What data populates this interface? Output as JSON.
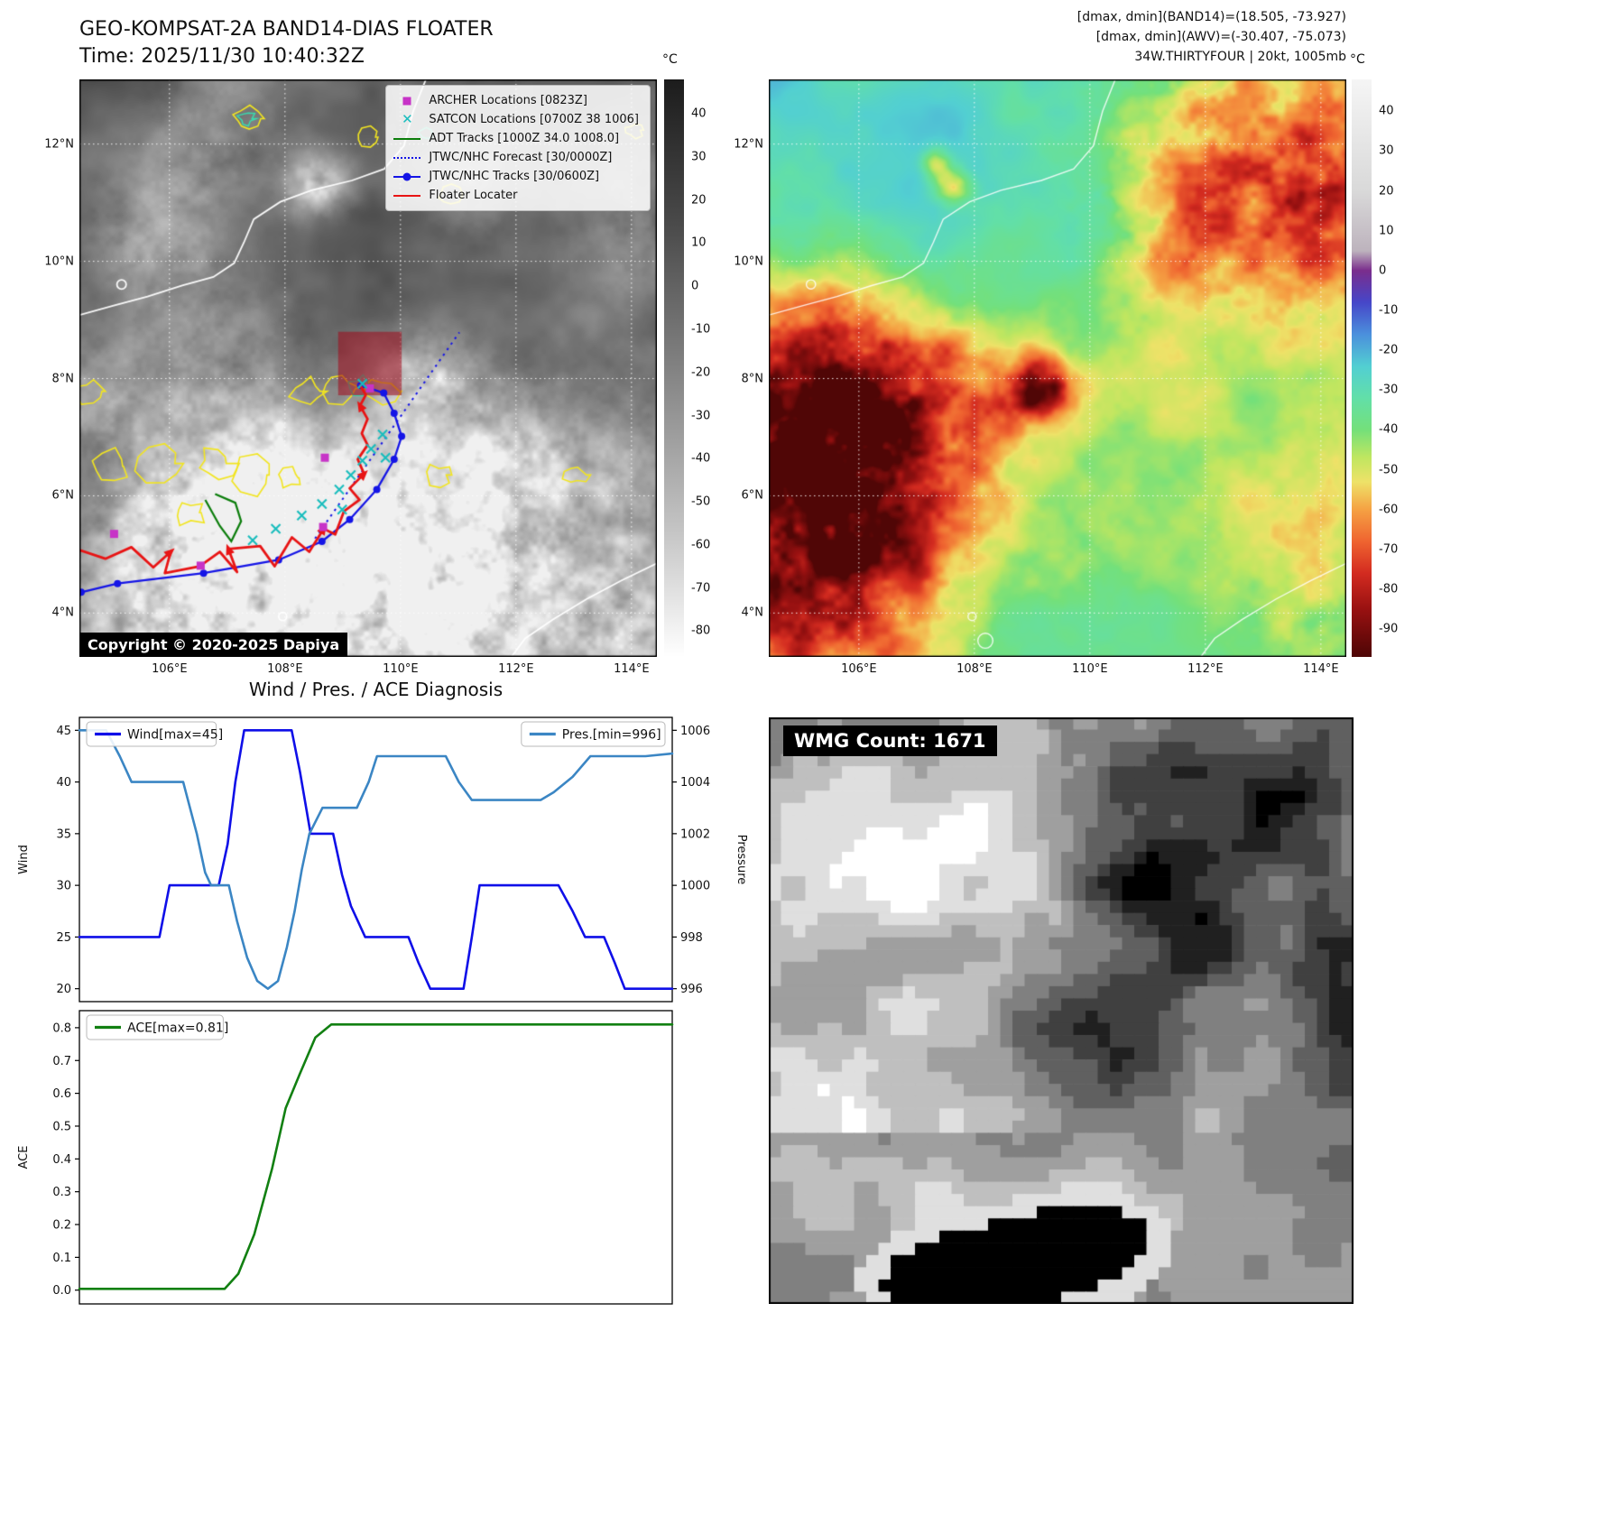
{
  "band14": {
    "title": "GEO-KOMPSAT-2A BAND14-DIAS FLOATER",
    "time": "Time: 2025/11/30 10:40:32Z",
    "copyright": "Copyright © 2020-2025 Dapiya",
    "colorbar": {
      "label": "°C",
      "ticks": [
        40,
        30,
        20,
        10,
        0,
        -10,
        -20,
        -30,
        -40,
        -50,
        -60,
        -70,
        -80
      ],
      "gradient": [
        [
          0,
          "#1c1c1c"
        ],
        [
          0.25,
          "#4a4a4a"
        ],
        [
          0.5,
          "#828282"
        ],
        [
          0.78,
          "#c4c4c4"
        ],
        [
          1,
          "#ffffff"
        ]
      ]
    },
    "axis": {
      "lat_labels": [
        "12°N",
        "10°N",
        "8°N",
        "6°N",
        "4°N"
      ],
      "lon_labels": [
        "106°E",
        "108°E",
        "110°E",
        "112°E",
        "114°E"
      ]
    },
    "legend": [
      {
        "label": "ARCHER Locations [0823Z]",
        "marker": "square",
        "color": "#c733c7"
      },
      {
        "label": "SATCON Locations [0700Z 38 1006]",
        "marker": "x",
        "color": "#18bdbd"
      },
      {
        "label": "ADT Tracks [1000Z 34.0 1008.0]",
        "marker": "line",
        "color": "#0a7d0a"
      },
      {
        "label": "JTWC/NHC Forecast [30/0000Z]",
        "marker": "dotted",
        "color": "#1414e6"
      },
      {
        "label": "JTWC/NHC Tracks [30/0600Z]",
        "marker": "line-dot",
        "color": "#1414e6"
      },
      {
        "label": "Floater Locater",
        "marker": "line",
        "color": "#e81414"
      }
    ],
    "overlays": {
      "coastlines": [
        [
          [
            0.6,
            0
          ],
          [
            0.578,
            0.055
          ],
          [
            0.562,
            0.115
          ],
          [
            0.528,
            0.155
          ],
          [
            0.472,
            0.175
          ],
          [
            0.402,
            0.192
          ],
          [
            0.348,
            0.212
          ],
          [
            0.302,
            0.242
          ],
          [
            0.285,
            0.282
          ],
          [
            0.268,
            0.318
          ],
          [
            0.232,
            0.342
          ],
          [
            0.178,
            0.357
          ],
          [
            0.118,
            0.376
          ],
          [
            0.058,
            0.392
          ],
          [
            0,
            0.408
          ]
        ],
        [
          [
            1,
            0.838
          ],
          [
            0.938,
            0.868
          ],
          [
            0.878,
            0.9
          ],
          [
            0.82,
            0.935
          ],
          [
            0.772,
            0.968
          ],
          [
            0.748,
            1
          ]
        ]
      ],
      "islands": [
        [
          0.375,
          0.972,
          0.013
        ],
        [
          0.073,
          0.355,
          0.008
        ],
        [
          0.352,
          0.93,
          0.007
        ]
      ],
      "jtwc_track": [
        [
          0.003,
          0.888
        ],
        [
          0.066,
          0.873
        ],
        [
          0.215,
          0.855
        ],
        [
          0.345,
          0.832
        ],
        [
          0.42,
          0.8
        ],
        [
          0.468,
          0.762
        ],
        [
          0.515,
          0.71
        ],
        [
          0.545,
          0.658
        ],
        [
          0.558,
          0.618
        ],
        [
          0.545,
          0.578
        ],
        [
          0.527,
          0.543
        ],
        [
          0.487,
          0.53
        ]
      ],
      "jtwc_forecast": [
        [
          0.408,
          0.795
        ],
        [
          0.658,
          0.438
        ]
      ],
      "floater_track": [
        [
          0,
          0.815
        ],
        [
          0.045,
          0.83
        ],
        [
          0.09,
          0.81
        ],
        [
          0.128,
          0.845
        ],
        [
          0.158,
          0.818
        ],
        [
          0.148,
          0.855
        ],
        [
          0.208,
          0.843
        ],
        [
          0.243,
          0.818
        ],
        [
          0.273,
          0.853
        ],
        [
          0.258,
          0.813
        ],
        [
          0.313,
          0.808
        ],
        [
          0.338,
          0.843
        ],
        [
          0.368,
          0.793
        ],
        [
          0.398,
          0.818
        ],
        [
          0.423,
          0.778
        ],
        [
          0.443,
          0.788
        ],
        [
          0.458,
          0.748
        ],
        [
          0.485,
          0.728
        ],
        [
          0.468,
          0.708
        ],
        [
          0.493,
          0.683
        ],
        [
          0.482,
          0.658
        ],
        [
          0.499,
          0.633
        ],
        [
          0.489,
          0.613
        ],
        [
          0.499,
          0.588
        ],
        [
          0.486,
          0.565
        ],
        [
          0.496,
          0.546
        ],
        [
          0.485,
          0.528
        ]
      ],
      "adt_track": [
        [
          0.218,
          0.728
        ],
        [
          0.243,
          0.773
        ],
        [
          0.263,
          0.8
        ],
        [
          0.28,
          0.765
        ],
        [
          0.27,
          0.733
        ],
        [
          0.235,
          0.718
        ]
      ],
      "archer_points": [
        [
          0.06,
          0.787
        ],
        [
          0.21,
          0.842
        ],
        [
          0.425,
          0.655
        ],
        [
          0.503,
          0.535
        ],
        [
          0.422,
          0.775
        ]
      ],
      "satcon_points": [
        [
          0.3,
          0.798
        ],
        [
          0.34,
          0.778
        ],
        [
          0.385,
          0.755
        ],
        [
          0.42,
          0.735
        ],
        [
          0.45,
          0.71
        ],
        [
          0.47,
          0.685
        ],
        [
          0.49,
          0.66
        ],
        [
          0.505,
          0.64
        ],
        [
          0.525,
          0.615
        ],
        [
          0.49,
          0.527
        ],
        [
          0.53,
          0.655
        ],
        [
          0.455,
          0.745
        ]
      ],
      "target_box": [
        0.448,
        0.437,
        0.11,
        0.11
      ],
      "yellow_contours": [
        [
          0.02,
          0.54,
          0.025
        ],
        [
          0.055,
          0.67,
          0.03
        ],
        [
          0.14,
          0.665,
          0.035
        ],
        [
          0.19,
          0.75,
          0.025
        ],
        [
          0.235,
          0.665,
          0.03
        ],
        [
          0.3,
          0.685,
          0.035
        ],
        [
          0.365,
          0.69,
          0.02
        ],
        [
          0.395,
          0.54,
          0.025
        ],
        [
          0.45,
          0.535,
          0.03
        ],
        [
          0.52,
          0.54,
          0.028
        ],
        [
          0.62,
          0.685,
          0.022
        ],
        [
          0.86,
          0.685,
          0.018
        ],
        [
          0.29,
          0.068,
          0.022
        ],
        [
          0.64,
          0.2,
          0.02
        ],
        [
          0.5,
          0.1,
          0.018
        ],
        [
          0.96,
          0.088,
          0.014
        ]
      ],
      "teal_contours": [
        [
          0.29,
          0.068,
          0.013
        ],
        [
          0.487,
          0.53,
          0.018
        ],
        [
          0.598,
          0.095,
          0.011
        ]
      ]
    }
  },
  "awv": {
    "header": [
      "[dmax, dmin](BAND14)=(18.505, -73.927)",
      "[dmax, dmin](AWV)=(-30.407, -75.073)",
      "34W.THIRTYFOUR | 20kt, 1005mb"
    ],
    "colorbar": {
      "label": "°C",
      "ticks": [
        40,
        30,
        20,
        10,
        0,
        -10,
        -20,
        -30,
        -40,
        -50,
        -60,
        -70,
        -80,
        -90
      ],
      "gradient": [
        [
          0,
          "#f5f5f5"
        ],
        [
          0.193,
          "#d9d9d9"
        ],
        [
          0.297,
          "#bdb3bd"
        ],
        [
          0.331,
          "#7a2d8c"
        ],
        [
          0.386,
          "#4646c8"
        ],
        [
          0.441,
          "#4b8fdc"
        ],
        [
          0.497,
          "#52cfd2"
        ],
        [
          0.552,
          "#62dfa8"
        ],
        [
          0.607,
          "#74e07a"
        ],
        [
          0.655,
          "#c0e660"
        ],
        [
          0.697,
          "#eee268"
        ],
        [
          0.745,
          "#f5a143"
        ],
        [
          0.8,
          "#ef6430"
        ],
        [
          0.855,
          "#d32b20"
        ],
        [
          0.917,
          "#991111"
        ],
        [
          1,
          "#4d0505"
        ]
      ]
    },
    "axis": {
      "lat_labels": [
        "12°N",
        "10°N",
        "8°N",
        "6°N",
        "4°N"
      ],
      "lon_labels": [
        "106°E",
        "108°E",
        "110°E",
        "112°E",
        "114°E"
      ]
    }
  },
  "diagnosis": {
    "title": "Wind / Pres. / ACE Diagnosis"
  },
  "wmg": {
    "label": "WMG Count: 1671"
  },
  "chart_data": [
    {
      "type": "line",
      "title": "Wind / Pres. / ACE Diagnosis",
      "dual_axis": true,
      "ylabel_left": "Wind",
      "ylabel_right": "Pressure",
      "ylim_left": [
        18.75,
        46.25
      ],
      "ylim_right": [
        995.5,
        1006.5
      ],
      "yticks_left": [
        20,
        25,
        30,
        35,
        40,
        45
      ],
      "yticks_right": [
        996,
        998,
        1000,
        1002,
        1004,
        1006
      ],
      "xlim": [
        0,
        1
      ],
      "grid": false,
      "series": [
        {
          "name": "Wind[max=45]",
          "axis": "left",
          "color": "#0f0fe8",
          "legend_pos": "upper-left",
          "points": [
            [
              0,
              25
            ],
            [
              0.135,
              25
            ],
            [
              0.152,
              30
            ],
            [
              0.235,
              30
            ],
            [
              0.25,
              34
            ],
            [
              0.263,
              40
            ],
            [
              0.278,
              45
            ],
            [
              0.358,
              45
            ],
            [
              0.372,
              41
            ],
            [
              0.39,
              35
            ],
            [
              0.428,
              35
            ],
            [
              0.443,
              31
            ],
            [
              0.458,
              28
            ],
            [
              0.482,
              25
            ],
            [
              0.555,
              25
            ],
            [
              0.572,
              22.5
            ],
            [
              0.592,
              20
            ],
            [
              0.648,
              20
            ],
            [
              0.662,
              25
            ],
            [
              0.675,
              30
            ],
            [
              0.808,
              30
            ],
            [
              0.832,
              27.5
            ],
            [
              0.853,
              25
            ],
            [
              0.885,
              25
            ],
            [
              0.903,
              22.5
            ],
            [
              0.92,
              20
            ],
            [
              1,
              20
            ]
          ]
        },
        {
          "name": "Pres.[min=996]",
          "axis": "right",
          "color": "#3b86c4",
          "legend_pos": "upper-right",
          "points": [
            [
              0,
              1006
            ],
            [
              0.045,
              1006
            ],
            [
              0.068,
              1005
            ],
            [
              0.088,
              1004
            ],
            [
              0.175,
              1004
            ],
            [
              0.198,
              1002
            ],
            [
              0.212,
              1000.5
            ],
            [
              0.222,
              1000
            ],
            [
              0.252,
              1000
            ],
            [
              0.266,
              998.6
            ],
            [
              0.283,
              997.2
            ],
            [
              0.3,
              996.3
            ],
            [
              0.318,
              996
            ],
            [
              0.335,
              996.3
            ],
            [
              0.35,
              997.6
            ],
            [
              0.363,
              999
            ],
            [
              0.375,
              1000.6
            ],
            [
              0.388,
              1002
            ],
            [
              0.41,
              1003
            ],
            [
              0.468,
              1003
            ],
            [
              0.488,
              1004
            ],
            [
              0.502,
              1005
            ],
            [
              0.618,
              1005
            ],
            [
              0.64,
              1004
            ],
            [
              0.662,
              1003.3
            ],
            [
              0.778,
              1003.3
            ],
            [
              0.8,
              1003.6
            ],
            [
              0.832,
              1004.2
            ],
            [
              0.862,
              1005
            ],
            [
              0.955,
              1005
            ],
            [
              1,
              1005.1
            ]
          ]
        }
      ]
    },
    {
      "type": "line",
      "ylabel_left": "ACE",
      "ylim_left": [
        -0.042,
        0.852
      ],
      "yticks_left": [
        0.0,
        0.1,
        0.2,
        0.3,
        0.4,
        0.5,
        0.6,
        0.7,
        0.8
      ],
      "ytick_decimals": 1,
      "xlim": [
        0,
        1
      ],
      "grid": false,
      "series": [
        {
          "name": "ACE[max=0.81]",
          "axis": "left",
          "color": "#128012",
          "legend_pos": "upper-left",
          "points": [
            [
              0,
              0.004
            ],
            [
              0.245,
              0.004
            ],
            [
              0.268,
              0.05
            ],
            [
              0.295,
              0.17
            ],
            [
              0.325,
              0.37
            ],
            [
              0.348,
              0.555
            ],
            [
              0.372,
              0.66
            ],
            [
              0.398,
              0.77
            ],
            [
              0.425,
              0.81
            ],
            [
              1,
              0.81
            ]
          ]
        }
      ]
    }
  ]
}
